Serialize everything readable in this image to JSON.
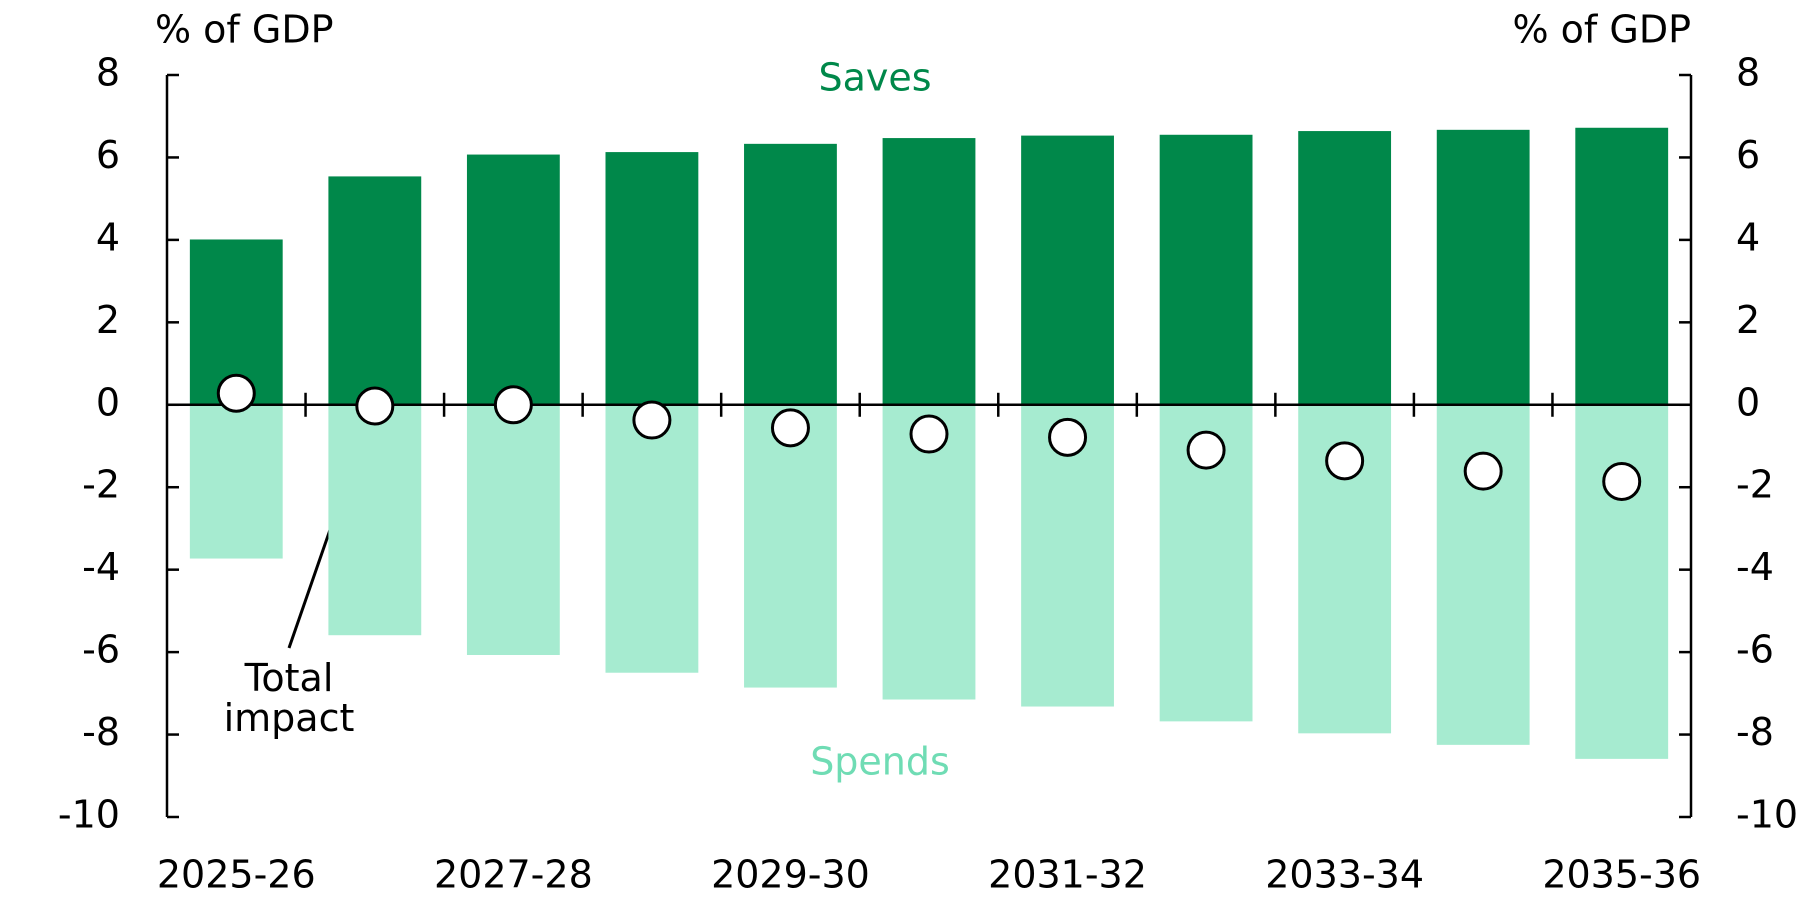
{
  "chart_data": {
    "type": "bar",
    "y_label": "% of GDP",
    "y2_label": "% of GDP",
    "categories": [
      "2025-26",
      null,
      "2027-28",
      null,
      "2029-30",
      null,
      "2031-32",
      null,
      "2033-34",
      null,
      "2035-36"
    ],
    "series": [
      {
        "name": "Saves",
        "color": "#00884a",
        "values": [
          4.01,
          5.54,
          6.07,
          6.13,
          6.33,
          6.47,
          6.53,
          6.55,
          6.64,
          6.67,
          6.72
        ]
      },
      {
        "name": "Spends",
        "color": "#a6ebd0",
        "values": [
          -3.73,
          -5.59,
          -6.07,
          -6.5,
          -6.86,
          -7.15,
          -7.32,
          -7.68,
          -7.97,
          -8.25,
          -8.59
        ]
      },
      {
        "name": "Total impact",
        "type": "scatter",
        "color": "#ffffff",
        "values": [
          0.28,
          -0.03,
          0,
          -0.37,
          -0.56,
          -0.71,
          -0.79,
          -1.1,
          -1.36,
          -1.61,
          -1.86
        ]
      }
    ],
    "ylim": [
      -10,
      8
    ],
    "yticks": [
      -10,
      -8,
      -6,
      -4,
      -2,
      0,
      2,
      4,
      6,
      8
    ],
    "y2lim": [
      -10,
      8
    ],
    "y2ticks": [
      -10,
      -8,
      -6,
      -4,
      -2,
      0,
      2,
      4,
      6,
      8
    ]
  }
}
